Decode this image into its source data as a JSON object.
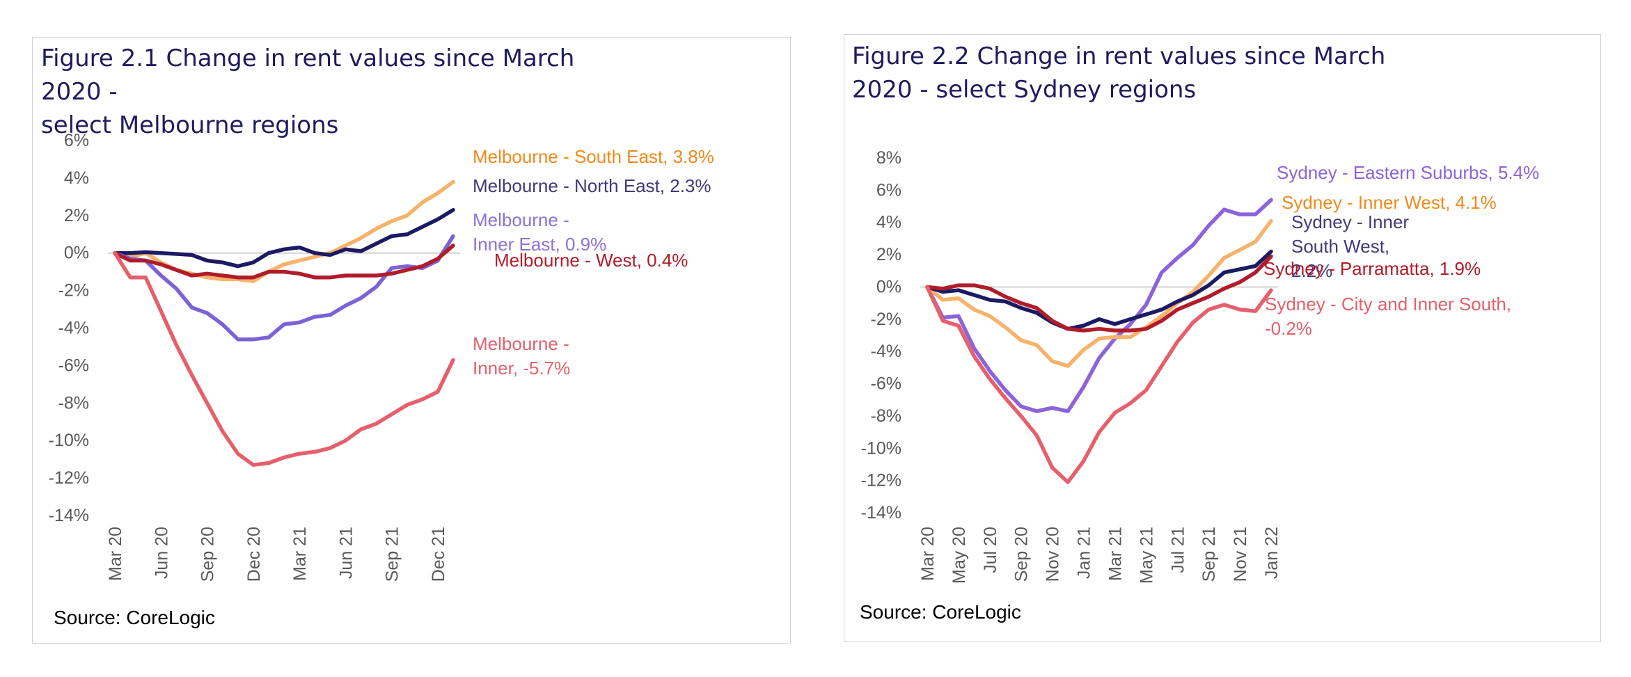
{
  "source_label": "Source: CoreLogic",
  "chart_data": [
    {
      "type": "line",
      "title": "Figure 2.1 Change in rent values since March 2020 - select Melbourne regions",
      "title_lines": [
        "Figure 2.1 Change in rent values since March 2020 -",
        "select Melbourne regions"
      ],
      "source": "Source: CoreLogic",
      "x": [
        "Mar 20",
        "Apr 20",
        "May 20",
        "Jun 20",
        "Jul 20",
        "Aug 20",
        "Sep 20",
        "Oct 20",
        "Nov 20",
        "Dec 20",
        "Jan 21",
        "Feb 21",
        "Mar 21",
        "Apr 21",
        "May 21",
        "Jun 21",
        "Jul 21",
        "Aug 21",
        "Sep 21",
        "Oct 21",
        "Nov 21",
        "Dec 21",
        "Jan 22"
      ],
      "xtick_labels": [
        "Mar 20",
        "Jun 20",
        "Sep 20",
        "Dec 20",
        "Mar 21",
        "Jun 21",
        "Sep 21",
        "Dec 21"
      ],
      "ylim": [
        -14,
        6
      ],
      "yticks": [
        6,
        4,
        2,
        0,
        -2,
        -4,
        -6,
        -8,
        -10,
        -12,
        -14
      ],
      "ytick_labels": [
        "6%",
        "4%",
        "2%",
        "0%",
        "-2%",
        "-4%",
        "-6%",
        "-8%",
        "-10%",
        "-12%",
        "-14%"
      ],
      "xlabel": "",
      "ylabel": "",
      "grid": false,
      "series": [
        {
          "name": "Melbourne - South East",
          "color": "#f7b26b",
          "values": [
            0,
            -0.2,
            0,
            -0.5,
            -0.9,
            -1.1,
            -1.3,
            -1.4,
            -1.4,
            -1.5,
            -1.0,
            -0.6,
            -0.4,
            -0.2,
            0,
            0.4,
            0.8,
            1.3,
            1.7,
            2.0,
            2.7,
            3.2,
            3.8
          ],
          "label_lines": [
            "Melbourne - South East, 3.8%"
          ],
          "label_color": "#f08a1c"
        },
        {
          "name": "Melbourne - North East",
          "color": "#1c1a63",
          "values": [
            0,
            0,
            0.05,
            0,
            -0.05,
            -0.1,
            -0.4,
            -0.5,
            -0.7,
            -0.5,
            0,
            0.2,
            0.3,
            0,
            -0.1,
            0.2,
            0.1,
            0.5,
            0.9,
            1.0,
            1.4,
            1.8,
            2.3
          ],
          "label_lines": [
            "Melbourne - North East, 2.3%"
          ],
          "label_color": "#3f3a78"
        },
        {
          "name": "Melbourne - Inner East",
          "color": "#7b63d6",
          "values": [
            0,
            -0.3,
            -0.4,
            -1.2,
            -1.9,
            -2.9,
            -3.2,
            -3.8,
            -4.6,
            -4.6,
            -4.5,
            -3.8,
            -3.7,
            -3.4,
            -3.3,
            -2.8,
            -2.4,
            -1.8,
            -0.8,
            -0.7,
            -0.8,
            -0.4,
            0.9
          ],
          "label_lines": [
            "Melbourne -",
            "Inner East, 0.9%"
          ],
          "label_color": "#8c72d8"
        },
        {
          "name": "Melbourne - West",
          "color": "#b01c2a",
          "values": [
            0,
            -0.4,
            -0.4,
            -0.6,
            -0.9,
            -1.2,
            -1.1,
            -1.2,
            -1.3,
            -1.3,
            -1.0,
            -1.0,
            -1.1,
            -1.3,
            -1.3,
            -1.2,
            -1.2,
            -1.2,
            -1.1,
            -0.9,
            -0.7,
            -0.3,
            0.4
          ],
          "label_lines": [
            "Melbourne - West, 0.4%"
          ],
          "label_color": "#b01c2a"
        },
        {
          "name": "Melbourne - Inner",
          "color": "#e5606c",
          "values": [
            0,
            -1.3,
            -1.3,
            -3.1,
            -4.9,
            -6.5,
            -8.0,
            -9.5,
            -10.7,
            -11.3,
            -11.2,
            -10.9,
            -10.7,
            -10.6,
            -10.4,
            -10.0,
            -9.4,
            -9.1,
            -8.6,
            -8.1,
            -7.8,
            -7.4,
            -5.7
          ],
          "label_lines": [
            "Melbourne -",
            "Inner, -5.7%"
          ],
          "label_color": "#e5606c"
        }
      ]
    },
    {
      "type": "line",
      "title": "Figure 2.2 Change in rent values since March 2020 - select Sydney regions",
      "title_lines": [
        "Figure 2.2 Change in rent values since March",
        "2020 - select Sydney regions"
      ],
      "source": "Source: CoreLogic",
      "x": [
        "Mar 20",
        "Apr 20",
        "May 20",
        "Jun 20",
        "Jul 20",
        "Aug 20",
        "Sep 20",
        "Oct 20",
        "Nov 20",
        "Dec 20",
        "Jan 21",
        "Feb 21",
        "Mar 21",
        "Apr 21",
        "May 21",
        "Jun 21",
        "Jul 21",
        "Aug 21",
        "Sep 21",
        "Oct 21",
        "Nov 21",
        "Dec 21",
        "Jan 22"
      ],
      "xtick_labels": [
        "Mar 20",
        "May 20",
        "Jul 20",
        "Sep 20",
        "Nov 20",
        "Jan 21",
        "Mar 21",
        "May 21",
        "Jul 21",
        "Sep 21",
        "Nov 21",
        "Jan 22"
      ],
      "ylim": [
        -14,
        8
      ],
      "yticks": [
        8,
        6,
        4,
        2,
        0,
        -2,
        -4,
        -6,
        -8,
        -10,
        -12,
        -14
      ],
      "ytick_labels": [
        "8%",
        "6%",
        "4%",
        "2%",
        "0%",
        "-2%",
        "-4%",
        "-6%",
        "-8%",
        "-10%",
        "-12%",
        "-14%"
      ],
      "xlabel": "",
      "ylabel": "",
      "grid": false,
      "series": [
        {
          "name": "Sydney - Eastern Suburbs",
          "color": "#8c63d9",
          "values": [
            0,
            -1.9,
            -1.8,
            -3.8,
            -5.2,
            -6.4,
            -7.4,
            -7.7,
            -7.5,
            -7.7,
            -6.2,
            -4.4,
            -3.2,
            -2.3,
            -1.1,
            0.9,
            1.8,
            2.6,
            3.8,
            4.8,
            4.5,
            4.5,
            5.4
          ],
          "label_lines": [
            "Sydney - Eastern Suburbs, 5.4%"
          ],
          "label_color": "#8c63d9"
        },
        {
          "name": "Sydney - Inner West",
          "color": "#f7b26b",
          "values": [
            0,
            -0.8,
            -0.7,
            -1.4,
            -1.8,
            -2.5,
            -3.3,
            -3.6,
            -4.6,
            -4.9,
            -3.9,
            -3.2,
            -3.1,
            -3.1,
            -2.5,
            -1.8,
            -1.0,
            -0.3,
            0.7,
            1.8,
            2.3,
            2.8,
            4.1
          ],
          "label_lines": [
            "Sydney - Inner West, 4.1%"
          ],
          "label_color": "#f08a1c"
        },
        {
          "name": "Sydney - Inner South West",
          "color": "#1c1a63",
          "values": [
            0,
            -0.3,
            -0.2,
            -0.5,
            -0.8,
            -0.9,
            -1.3,
            -1.6,
            -2.2,
            -2.6,
            -2.4,
            -2.0,
            -2.3,
            -2.0,
            -1.7,
            -1.4,
            -0.9,
            -0.5,
            0.1,
            0.9,
            1.1,
            1.3,
            2.2
          ],
          "label_lines": [
            "Sydney - Inner",
            "South West,",
            "2.2%"
          ],
          "label_color": "#3f3a78"
        },
        {
          "name": "Sydney - Parramatta",
          "color": "#b01c2a",
          "values": [
            0,
            -0.1,
            0.1,
            0.1,
            -0.1,
            -0.6,
            -1.0,
            -1.3,
            -2.1,
            -2.6,
            -2.7,
            -2.6,
            -2.7,
            -2.7,
            -2.6,
            -2.1,
            -1.4,
            -1.0,
            -0.6,
            -0.1,
            0.3,
            0.9,
            1.9
          ],
          "label_lines": [
            "Sydney - Parramatta, 1.9%"
          ],
          "label_color": "#b01c2a"
        },
        {
          "name": "Sydney - City and Inner South",
          "color": "#e5606c",
          "values": [
            0,
            -2.1,
            -2.4,
            -4.3,
            -5.7,
            -6.9,
            -8.0,
            -9.2,
            -11.2,
            -12.1,
            -10.8,
            -9.0,
            -7.8,
            -7.2,
            -6.4,
            -4.9,
            -3.4,
            -2.2,
            -1.4,
            -1.1,
            -1.4,
            -1.5,
            -0.2
          ],
          "label_lines": [
            "Sydney - City and Inner South,",
            "-0.2%"
          ],
          "label_color": "#e5606c"
        }
      ]
    }
  ]
}
